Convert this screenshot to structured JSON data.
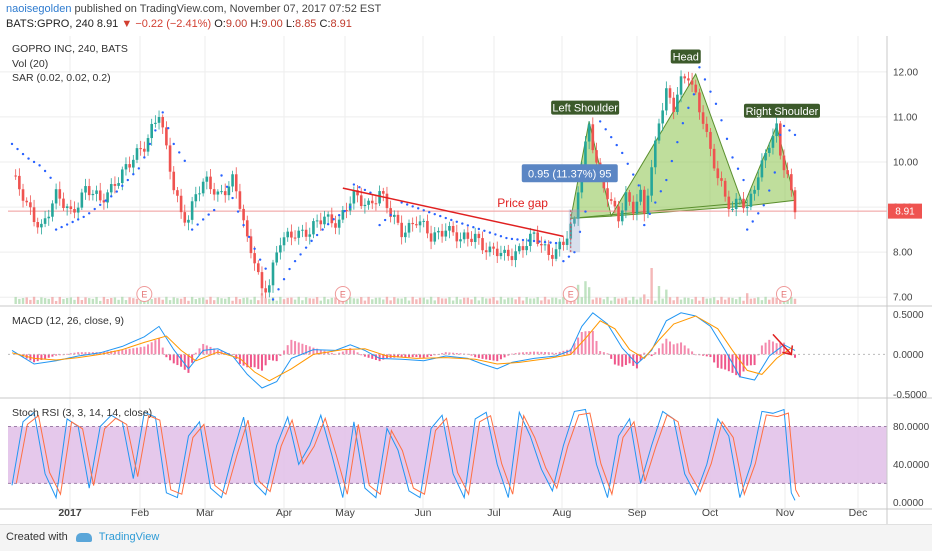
{
  "header": {
    "user": "naoisegolden",
    "published_text": "published on TradingView.com, November 07, 2017 07:52 EST",
    "symbol": "BATS:GPRO, 240",
    "last": "8.91",
    "arrow": "▼",
    "change": "−0.22 (−2.41%)",
    "o_label": "O:",
    "o": "9.00",
    "h_label": "H:",
    "h": "9.00",
    "l_label": "L:",
    "l": "8.85",
    "c_label": "C:",
    "c": "8.91"
  },
  "price_pane": {
    "title": "GOPRO INC, 240, BATS",
    "vol_label": "Vol (20)",
    "sar_label": "SAR (0.02, 0.02, 0.2)",
    "last_price_tag": "8.91",
    "earnings_marker": "E"
  },
  "annotations": {
    "left_shoulder": "Left Shoulder",
    "head": "Head",
    "right_shoulder": "Right Shoulder",
    "price_gap": "Price gap",
    "measure": "0.95 (11.37%) 95"
  },
  "macd_pane": {
    "title": "MACD (12, 26, close, 9)"
  },
  "stoch_pane": {
    "title": "Stoch RSI (3, 3, 14, 14, close)"
  },
  "footer": {
    "created_with": "Created with",
    "brand": "TradingView"
  },
  "colors": {
    "up": "#26a69a",
    "down": "#ef5350",
    "sar": "#2962ff",
    "pattern": "#8bc34a",
    "trend": "#e02020",
    "stoch_band": "#e1bee7"
  },
  "chart_data": [
    {
      "type": "candlestick",
      "title": "GOPRO INC, 240, BATS",
      "x_tick_labels": [
        "2017",
        "Feb",
        "Mar",
        "Apr",
        "May",
        "Jun",
        "Jul",
        "Aug",
        "Sep",
        "Oct",
        "Nov",
        "Dec"
      ],
      "y_tick_labels": [
        "7.00",
        "8.00",
        "9.00",
        "10.00",
        "11.00",
        "12.00"
      ],
      "ylim": [
        6.85,
        12.75
      ],
      "last_price": 8.91,
      "close_path": [
        [
          0,
          9.7
        ],
        [
          4,
          9.0
        ],
        [
          8,
          8.6
        ],
        [
          12,
          9.2
        ],
        [
          16,
          8.9
        ],
        [
          20,
          9.4
        ],
        [
          24,
          9.1
        ],
        [
          28,
          9.6
        ],
        [
          32,
          9.9
        ],
        [
          36,
          10.4
        ],
        [
          38,
          10.8
        ],
        [
          40,
          11.1
        ],
        [
          42,
          10.2
        ],
        [
          44,
          9.4
        ],
        [
          46,
          8.9
        ],
        [
          48,
          8.8
        ],
        [
          50,
          9.3
        ],
        [
          53,
          9.5
        ],
        [
          56,
          9.3
        ],
        [
          60,
          9.6
        ],
        [
          62,
          9.0
        ],
        [
          64,
          8.2
        ],
        [
          66,
          7.9
        ],
        [
          68,
          7.2
        ],
        [
          70,
          7.3
        ],
        [
          73,
          8.2
        ],
        [
          77,
          8.5
        ],
        [
          81,
          8.4
        ],
        [
          85,
          8.8
        ],
        [
          89,
          8.7
        ],
        [
          93,
          9.2
        ],
        [
          97,
          9.1
        ],
        [
          100,
          9.3
        ],
        [
          103,
          8.8
        ],
        [
          106,
          8.5
        ],
        [
          110,
          8.7
        ],
        [
          114,
          8.3
        ],
        [
          118,
          8.6
        ],
        [
          122,
          8.2
        ],
        [
          126,
          8.4
        ],
        [
          130,
          8.0
        ],
        [
          134,
          7.9
        ],
        [
          138,
          8.1
        ],
        [
          142,
          8.3
        ],
        [
          146,
          8.0
        ],
        [
          150,
          8.2
        ],
        [
          153,
          8.6
        ],
        [
          154,
          9.4
        ],
        [
          156,
          10.4
        ],
        [
          157,
          10.9
        ],
        [
          159,
          10.0
        ],
        [
          161,
          9.4
        ],
        [
          163,
          9.0
        ],
        [
          165,
          8.8
        ],
        [
          167,
          9.3
        ],
        [
          169,
          9.0
        ],
        [
          171,
          9.2
        ],
        [
          172,
          8.8
        ],
        [
          174,
          9.8
        ],
        [
          176,
          11.0
        ],
        [
          178,
          11.6
        ],
        [
          180,
          11.2
        ],
        [
          182,
          11.7
        ],
        [
          184,
          11.9
        ],
        [
          186,
          11.5
        ],
        [
          188,
          11.0
        ],
        [
          190,
          10.2
        ],
        [
          192,
          9.6
        ],
        [
          194,
          9.2
        ],
        [
          196,
          9.0
        ],
        [
          198,
          9.3
        ],
        [
          200,
          8.9
        ],
        [
          202,
          9.4
        ],
        [
          204,
          9.9
        ],
        [
          206,
          10.5
        ],
        [
          208,
          10.8
        ],
        [
          209,
          10.2
        ],
        [
          211,
          9.6
        ],
        [
          212,
          9.2
        ],
        [
          213,
          8.91
        ]
      ],
      "sar_segments": [
        [
          [
            0,
            10.4
          ],
          [
            4,
            10.1
          ],
          [
            8,
            9.9
          ],
          [
            11,
            9.6
          ]
        ],
        [
          [
            12,
            8.5
          ],
          [
            20,
            8.8
          ],
          [
            28,
            9.3
          ],
          [
            35,
            9.9
          ],
          [
            39,
            10.7
          ]
        ],
        [
          [
            41,
            11.1
          ],
          [
            44,
            10.4
          ],
          [
            48,
            9.9
          ]
        ],
        [
          [
            49,
            8.5
          ],
          [
            53,
            8.8
          ],
          [
            56,
            9.0
          ]
        ],
        [
          [
            57,
            9.7
          ],
          [
            60,
            9.2
          ],
          [
            63,
            8.6
          ],
          [
            67,
            7.9
          ],
          [
            70,
            7.5
          ]
        ],
        [
          [
            71,
            6.95
          ],
          [
            76,
            7.7
          ],
          [
            82,
            8.3
          ],
          [
            87,
            8.7
          ],
          [
            92,
            9.0
          ]
        ],
        [
          [
            93,
            9.5
          ],
          [
            98,
            9.3
          ]
        ],
        [
          [
            100,
            8.6
          ],
          [
            104,
            8.9
          ]
        ],
        [
          [
            106,
            9.1
          ],
          [
            120,
            8.7
          ],
          [
            135,
            8.3
          ],
          [
            148,
            8.2
          ]
        ],
        [
          [
            150,
            7.8
          ],
          [
            153,
            8.0
          ],
          [
            156,
            8.9
          ],
          [
            158,
            10.1
          ]
        ],
        [
          [
            160,
            10.9
          ],
          [
            166,
            10.2
          ],
          [
            171,
            9.4
          ]
        ],
        [
          [
            172,
            8.6
          ],
          [
            178,
            9.6
          ],
          [
            183,
            11.0
          ],
          [
            186,
            11.6
          ]
        ],
        [
          [
            187,
            12.1
          ],
          [
            192,
            11.2
          ],
          [
            196,
            10.1
          ],
          [
            199,
            9.6
          ]
        ],
        [
          [
            200,
            8.5
          ],
          [
            205,
            9.1
          ],
          [
            208,
            9.9
          ],
          [
            209,
            10.6
          ]
        ],
        [
          [
            210,
            10.8
          ],
          [
            213,
            10.6
          ],
          [
            214,
            10.4
          ]
        ]
      ],
      "volume_spikes": [
        [
          68,
          0.9
        ],
        [
          154,
          1.6
        ],
        [
          156,
          1.9
        ],
        [
          157,
          1.4
        ],
        [
          172,
          0.8
        ],
        [
          174,
          3.0
        ],
        [
          176,
          1.5
        ],
        [
          178,
          1.2
        ],
        [
          200,
          0.9
        ],
        [
          209,
          1.0
        ],
        [
          211,
          1.3
        ]
      ],
      "earnings_markers": [
        36,
        90,
        152,
        210
      ],
      "trend_line": [
        [
          90,
          9.42
        ],
        [
          150,
          8.35
        ]
      ],
      "neckline": [
        [
          152,
          8.75
        ],
        [
          200,
          9.1
        ]
      ],
      "pattern": {
        "left_shoulder": [
          [
            152,
            8.75
          ],
          [
            157,
            10.9
          ],
          [
            163,
            8.8
          ]
        ],
        "head": [
          [
            163,
            8.8
          ],
          [
            186,
            11.95
          ],
          [
            199,
            9.02
          ]
        ],
        "right_shoulder": [
          [
            199,
            9.02
          ],
          [
            208,
            10.8
          ],
          [
            213,
            9.15
          ]
        ]
      },
      "measure_box": {
        "x": [
          152,
          154
        ],
        "y": [
          8.0,
          8.95
        ]
      }
    },
    {
      "type": "line",
      "title": "MACD (12, 26, close, 9)",
      "y_tick_labels": [
        "0.5000",
        "0.0000",
        "-0.5000"
      ],
      "ylim": [
        -0.52,
        0.58
      ],
      "macd": [
        [
          0,
          0.05
        ],
        [
          6,
          -0.12
        ],
        [
          12,
          -0.08
        ],
        [
          18,
          -0.02
        ],
        [
          24,
          0.02
        ],
        [
          30,
          0.1
        ],
        [
          36,
          0.22
        ],
        [
          40,
          0.35
        ],
        [
          44,
          0.06
        ],
        [
          48,
          -0.18
        ],
        [
          52,
          0.05
        ],
        [
          56,
          0.07
        ],
        [
          60,
          -0.02
        ],
        [
          64,
          -0.25
        ],
        [
          68,
          -0.42
        ],
        [
          72,
          -0.34
        ],
        [
          76,
          -0.05
        ],
        [
          82,
          0.06
        ],
        [
          88,
          0.05
        ],
        [
          92,
          0.12
        ],
        [
          96,
          0.05
        ],
        [
          100,
          -0.05
        ],
        [
          106,
          -0.06
        ],
        [
          112,
          -0.08
        ],
        [
          118,
          -0.02
        ],
        [
          124,
          -0.05
        ],
        [
          128,
          -0.12
        ],
        [
          132,
          -0.18
        ],
        [
          136,
          -0.1
        ],
        [
          142,
          -0.05
        ],
        [
          148,
          -0.02
        ],
        [
          152,
          0.05
        ],
        [
          155,
          0.35
        ],
        [
          158,
          0.52
        ],
        [
          162,
          0.38
        ],
        [
          166,
          0.08
        ],
        [
          170,
          -0.12
        ],
        [
          174,
          0.05
        ],
        [
          178,
          0.42
        ],
        [
          182,
          0.52
        ],
        [
          186,
          0.48
        ],
        [
          190,
          0.35
        ],
        [
          194,
          0.05
        ],
        [
          198,
          -0.28
        ],
        [
          202,
          -0.32
        ],
        [
          206,
          -0.02
        ],
        [
          210,
          0.12
        ],
        [
          213,
          0.05
        ]
      ],
      "signal": [
        [
          0,
          0.02
        ],
        [
          6,
          -0.05
        ],
        [
          12,
          -0.07
        ],
        [
          18,
          -0.04
        ],
        [
          24,
          0.0
        ],
        [
          30,
          0.06
        ],
        [
          36,
          0.15
        ],
        [
          42,
          0.23
        ],
        [
          46,
          0.05
        ],
        [
          50,
          -0.08
        ],
        [
          56,
          0.03
        ],
        [
          62,
          -0.05
        ],
        [
          66,
          -0.22
        ],
        [
          70,
          -0.33
        ],
        [
          76,
          -0.18
        ],
        [
          82,
          0.0
        ],
        [
          90,
          0.06
        ],
        [
          96,
          0.07
        ],
        [
          102,
          -0.02
        ],
        [
          110,
          -0.05
        ],
        [
          118,
          -0.04
        ],
        [
          126,
          -0.06
        ],
        [
          132,
          -0.12
        ],
        [
          138,
          -0.1
        ],
        [
          146,
          -0.05
        ],
        [
          152,
          0.0
        ],
        [
          156,
          0.2
        ],
        [
          160,
          0.42
        ],
        [
          164,
          0.32
        ],
        [
          168,
          0.06
        ],
        [
          172,
          -0.05
        ],
        [
          176,
          0.18
        ],
        [
          180,
          0.38
        ],
        [
          186,
          0.48
        ],
        [
          192,
          0.32
        ],
        [
          196,
          0.05
        ],
        [
          200,
          -0.2
        ],
        [
          204,
          -0.25
        ],
        [
          208,
          -0.05
        ],
        [
          212,
          0.08
        ]
      ],
      "arrow": [
        [
          207,
          0.25
        ],
        [
          212,
          0.0
        ]
      ]
    },
    {
      "type": "line",
      "title": "Stoch RSI (3, 3, 14, 14, close)",
      "y_tick_labels": [
        "80.0000",
        "40.0000",
        "0.0000"
      ],
      "ylim": [
        -6,
        108
      ],
      "band": [
        20,
        80
      ],
      "k": [
        [
          0,
          18
        ],
        [
          3,
          85
        ],
        [
          6,
          95
        ],
        [
          9,
          30
        ],
        [
          12,
          5
        ],
        [
          15,
          88
        ],
        [
          18,
          80
        ],
        [
          21,
          15
        ],
        [
          24,
          80
        ],
        [
          27,
          92
        ],
        [
          30,
          85
        ],
        [
          33,
          25
        ],
        [
          36,
          95
        ],
        [
          39,
          90
        ],
        [
          42,
          10
        ],
        [
          45,
          5
        ],
        [
          48,
          70
        ],
        [
          51,
          85
        ],
        [
          54,
          15
        ],
        [
          57,
          5
        ],
        [
          60,
          50
        ],
        [
          63,
          90
        ],
        [
          66,
          20
        ],
        [
          69,
          8
        ],
        [
          72,
          60
        ],
        [
          75,
          90
        ],
        [
          78,
          40
        ],
        [
          81,
          60
        ],
        [
          84,
          92
        ],
        [
          87,
          50
        ],
        [
          90,
          5
        ],
        [
          93,
          85
        ],
        [
          96,
          15
        ],
        [
          99,
          5
        ],
        [
          102,
          78
        ],
        [
          105,
          55
        ],
        [
          108,
          12
        ],
        [
          111,
          5
        ],
        [
          114,
          78
        ],
        [
          117,
          92
        ],
        [
          120,
          30
        ],
        [
          123,
          5
        ],
        [
          126,
          88
        ],
        [
          129,
          95
        ],
        [
          132,
          40
        ],
        [
          135,
          5
        ],
        [
          138,
          95
        ],
        [
          141,
          70
        ],
        [
          144,
          35
        ],
        [
          147,
          12
        ],
        [
          150,
          60
        ],
        [
          153,
          96
        ],
        [
          156,
          98
        ],
        [
          159,
          40
        ],
        [
          162,
          5
        ],
        [
          165,
          70
        ],
        [
          168,
          88
        ],
        [
          171,
          20
        ],
        [
          174,
          60
        ],
        [
          177,
          96
        ],
        [
          180,
          88
        ],
        [
          183,
          30
        ],
        [
          186,
          8
        ],
        [
          189,
          40
        ],
        [
          192,
          88
        ],
        [
          195,
          70
        ],
        [
          198,
          5
        ],
        [
          201,
          40
        ],
        [
          204,
          96
        ],
        [
          207,
          94
        ],
        [
          210,
          98
        ],
        [
          212,
          10
        ],
        [
          213,
          2
        ]
      ]
    }
  ]
}
